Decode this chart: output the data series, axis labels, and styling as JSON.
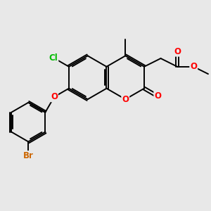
{
  "background_color": "#e8e8e8",
  "bond_color": "#000000",
  "atom_colors": {
    "O": "#ff0000",
    "Cl": "#00bb00",
    "Br": "#cc6600",
    "C": "#000000"
  },
  "figsize": [
    3.0,
    3.0
  ],
  "dpi": 100
}
